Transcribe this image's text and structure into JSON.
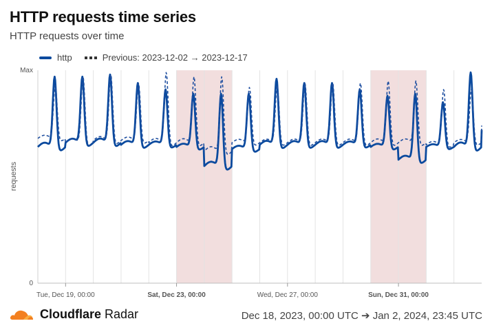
{
  "header": {
    "title": "HTTP requests time series",
    "subtitle": "HTTP requests over time"
  },
  "legend": {
    "current": "http",
    "previous": "Previous: 2023-12-02 → 2023-12-17"
  },
  "footer": {
    "brand_bold": "Cloudflare",
    "brand_rest": " Radar",
    "range": "Dec 18, 2023, 00:00 UTC ➔ Jan 2, 2024, 23:45 UTC"
  },
  "chart_data": {
    "type": "line",
    "title": "HTTP requests time series",
    "subtitle": "HTTP requests over time",
    "xlabel": "",
    "ylabel": "requests",
    "y_ticks": [
      "Max",
      "0"
    ],
    "ylim": [
      0,
      1
    ],
    "x_range": [
      "2023-12-18T00:00",
      "2024-01-02T23:45"
    ],
    "x_ticks": [
      {
        "label": "Tue, Dec 19, 00:00",
        "day": 1,
        "bold": false
      },
      {
        "label": "Sat, Dec 23, 00:00",
        "day": 5,
        "bold": true
      },
      {
        "label": "Wed, Dec 27, 00:00",
        "day": 9,
        "bold": false
      },
      {
        "label": "Sun, Dec 31, 00:00",
        "day": 13,
        "bold": true
      }
    ],
    "weekend_bands": [
      {
        "from_day": 5,
        "to_day": 7
      },
      {
        "from_day": 12,
        "to_day": 14
      }
    ],
    "grid": "vertical daily lines",
    "legend": "top-left",
    "colors": {
      "current": "#0b4a9e",
      "previous": "#1f4fa0",
      "weekend": "#f2dede",
      "grid": "#e3e3e3"
    },
    "series": [
      {
        "name": "http",
        "style": "solid",
        "peaks": [
          0.97,
          0.97,
          0.98,
          0.94,
          0.91,
          0.89,
          0.89,
          0.89,
          0.96,
          0.94,
          0.94,
          0.91,
          0.88,
          0.89,
          0.85,
          0.99
        ],
        "troughs": [
          0.64,
          0.66,
          0.66,
          0.65,
          0.65,
          0.64,
          0.55,
          0.63,
          0.65,
          0.65,
          0.65,
          0.65,
          0.64,
          0.58,
          0.64,
          0.64
        ]
      },
      {
        "name": "Previous: 2023-12-02 → 2023-12-17",
        "style": "dashed",
        "peaks": [
          0.93,
          0.97,
          0.98,
          0.94,
          0.99,
          0.97,
          0.97,
          0.92,
          0.93,
          0.94,
          0.94,
          0.94,
          0.95,
          0.95,
          0.91,
          0.91
        ],
        "troughs": [
          0.68,
          0.66,
          0.67,
          0.67,
          0.66,
          0.66,
          0.62,
          0.66,
          0.66,
          0.66,
          0.66,
          0.66,
          0.66,
          0.66,
          0.65,
          0.66
        ]
      }
    ]
  }
}
